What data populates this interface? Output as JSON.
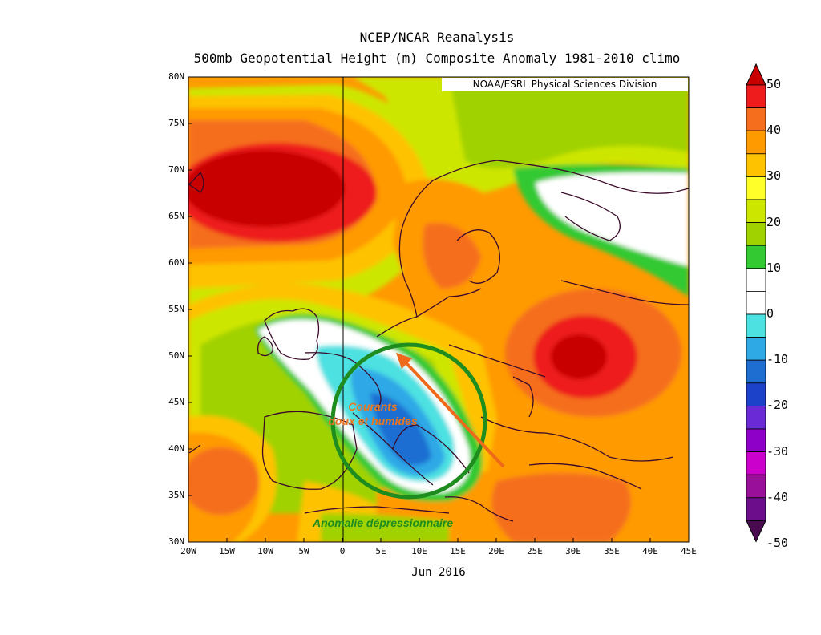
{
  "title_line1": "NCEP/NCAR Reanalysis",
  "title_line2": "500mb Geopotential Height (m) Composite Anomaly 1981-2010 climo",
  "credit": "NOAA/ESRL Physical Sciences Division",
  "period_label": "Jun 2016",
  "x_ticks": [
    "20W",
    "15W",
    "10W",
    "5W",
    "0",
    "5E",
    "10E",
    "15E",
    "20E",
    "25E",
    "30E",
    "35E",
    "40E",
    "45E"
  ],
  "y_ticks": [
    "80N",
    "75N",
    "70N",
    "65N",
    "60N",
    "55N",
    "50N",
    "45N",
    "40N",
    "35N",
    "30N"
  ],
  "map_extent": {
    "lon": [
      -20,
      45
    ],
    "lat": [
      30,
      80
    ]
  },
  "colorbar": {
    "labels": [
      "50",
      "40",
      "30",
      "20",
      "10",
      "0",
      "-10",
      "-20",
      "-30",
      "-40",
      "-50"
    ],
    "colors": [
      "#c80000",
      "#ee1c1c",
      "#f56e1e",
      "#ff9a00",
      "#fec200",
      "#ffff2a",
      "#cde600",
      "#a0d200",
      "#32c932",
      "#ffffff",
      "#ffffff",
      "#4de1e1",
      "#2fa8e6",
      "#1e6ed2",
      "#1b42c8",
      "#6a2ad6",
      "#8e00c8",
      "#cc00cc",
      "#9a0f9a",
      "#6c0e8c",
      "#4a0a50"
    ]
  },
  "annotations": {
    "currents_line1": "Courants",
    "currents_line2": "doux et humides",
    "anomaly": "Anomalie dépressionnaire"
  },
  "colors": {
    "circle": "#1e8c1e",
    "arrow": "#ee6a1a"
  }
}
